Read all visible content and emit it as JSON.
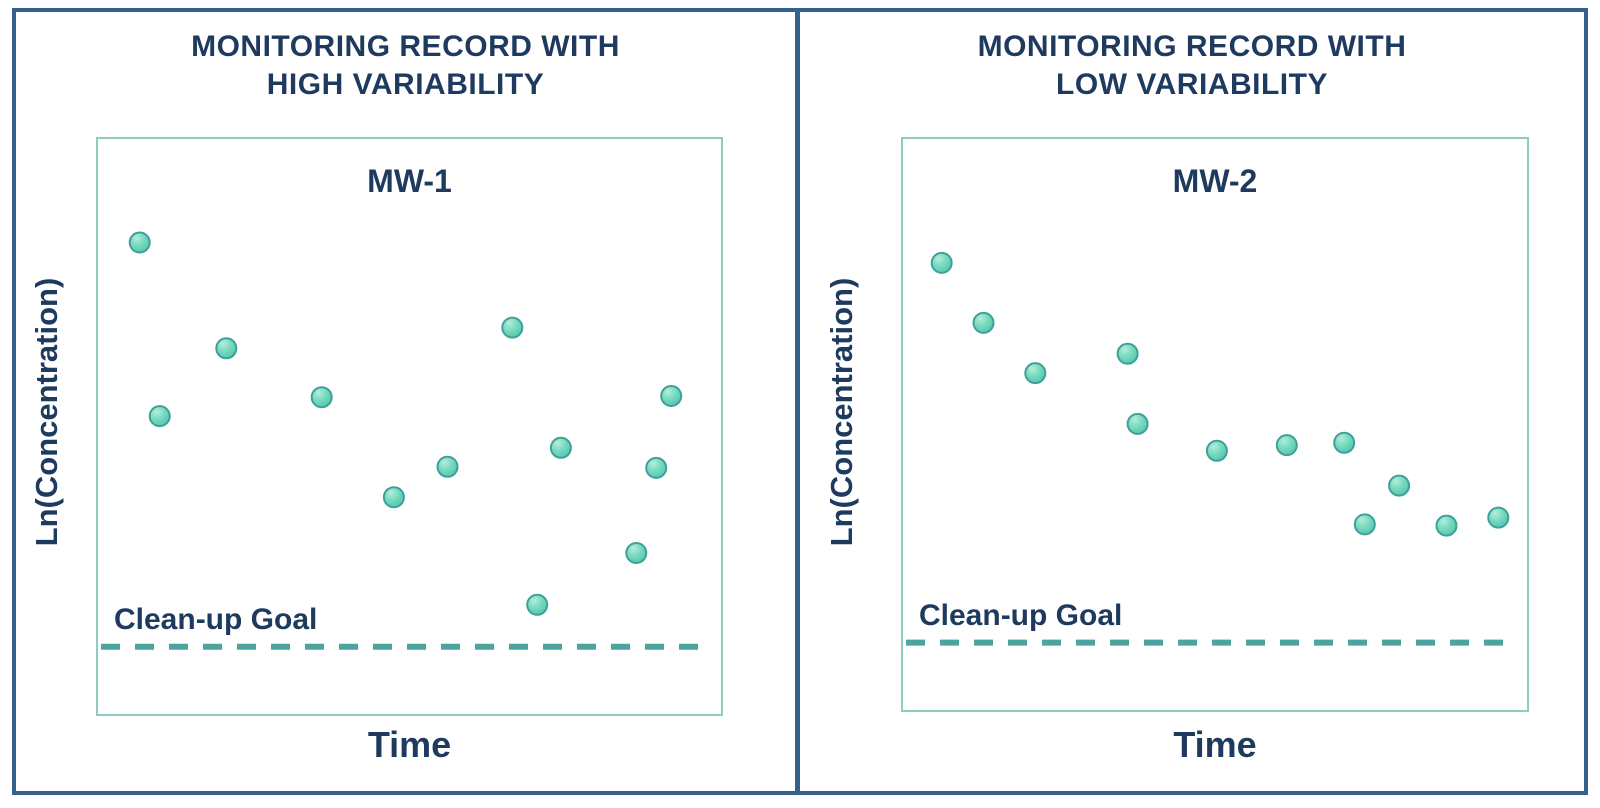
{
  "colors": {
    "text_navy": "#1e3a5e",
    "frame_blue": "#35618c",
    "plot_border_teal": "#8fcbc3",
    "goal_line_teal": "#4ba49e",
    "point_fill": "#67d5ba",
    "point_edge": "#3f9f9c",
    "background": "#ffffff"
  },
  "panels": [
    {
      "title_line1": "MONITORING RECORD WITH",
      "title_line2": "HIGH VARIABILITY",
      "well_label": "MW-1",
      "y_axis_label": "Ln(Concentration)",
      "x_axis_label": "Time",
      "goal_label": "Clean-up Goal"
    },
    {
      "title_line1": "MONITORING RECORD WITH",
      "title_line2": "LOW VARIABILITY",
      "well_label": "MW-2",
      "y_axis_label": "Ln(Concentration)",
      "x_axis_label": "Time",
      "goal_label": "Clean-up Goal"
    }
  ],
  "chart_data": [
    {
      "type": "scatter",
      "title": "MONITORING RECORD WITH HIGH VARIABILITY",
      "series_label": "MW-1",
      "xlabel": "Time",
      "ylabel": "Ln(Concentration)",
      "x_range": [
        0,
        1
      ],
      "y_range": [
        0,
        1
      ],
      "grid": false,
      "legend": "none",
      "cleanup_goal_label": "Clean-up Goal",
      "cleanup_goal_y": 0.117,
      "points": [
        [
          0.067,
          0.82
        ],
        [
          0.099,
          0.518
        ],
        [
          0.206,
          0.636
        ],
        [
          0.359,
          0.551
        ],
        [
          0.475,
          0.377
        ],
        [
          0.561,
          0.43
        ],
        [
          0.665,
          0.672
        ],
        [
          0.705,
          0.19
        ],
        [
          0.743,
          0.463
        ],
        [
          0.864,
          0.28
        ],
        [
          0.896,
          0.428
        ],
        [
          0.92,
          0.553
        ]
      ]
    },
    {
      "type": "scatter",
      "title": "MONITORING RECORD WITH LOW VARIABILITY",
      "series_label": "MW-2",
      "xlabel": "Time",
      "ylabel": "Ln(Concentration)",
      "x_range": [
        0,
        1
      ],
      "y_range": [
        0,
        1
      ],
      "grid": false,
      "legend": "none",
      "cleanup_goal_label": "Clean-up Goal",
      "cleanup_goal_y": 0.118,
      "points": [
        [
          0.062,
          0.783
        ],
        [
          0.129,
          0.678
        ],
        [
          0.212,
          0.59
        ],
        [
          0.36,
          0.624
        ],
        [
          0.376,
          0.501
        ],
        [
          0.503,
          0.454
        ],
        [
          0.615,
          0.464
        ],
        [
          0.707,
          0.468
        ],
        [
          0.74,
          0.325
        ],
        [
          0.795,
          0.393
        ],
        [
          0.871,
          0.323
        ],
        [
          0.954,
          0.337
        ]
      ]
    }
  ]
}
